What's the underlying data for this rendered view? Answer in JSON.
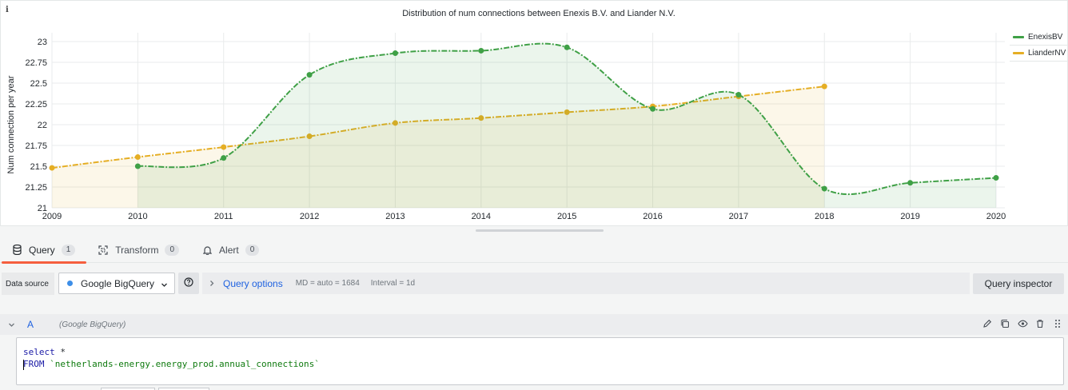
{
  "panel": {
    "info_icon": "i",
    "title": "Distribution of num connections between Enexis B.V. and Liander N.V."
  },
  "chart_data": {
    "type": "line",
    "title": "Distribution of num connections between Enexis B.V. and Liander N.V.",
    "xlabel": "",
    "ylabel": "Num connection per year",
    "xlim": [
      2009,
      2020
    ],
    "ylim": [
      21,
      23
    ],
    "x_ticks": [
      "2009",
      "2010",
      "2011",
      "2012",
      "2013",
      "2014",
      "2015",
      "2016",
      "2017",
      "2018",
      "2019",
      "2020"
    ],
    "y_ticks": [
      "21",
      "21.25",
      "21.5",
      "21.75",
      "22",
      "22.25",
      "22.5",
      "22.75",
      "23"
    ],
    "grid": true,
    "legend": "right",
    "series": [
      {
        "name": "EnexisBV",
        "color": "#3fa046",
        "points": [
          [
            2010,
            21.5
          ],
          [
            2011,
            21.6
          ],
          [
            2012,
            22.6
          ],
          [
            2013,
            22.86
          ],
          [
            2014,
            22.89
          ],
          [
            2015,
            22.93
          ],
          [
            2016,
            22.19
          ],
          [
            2017,
            22.36
          ],
          [
            2018,
            21.23
          ],
          [
            2019,
            21.3
          ],
          [
            2020,
            21.36
          ]
        ]
      },
      {
        "name": "LianderNV",
        "color": "#e5ae24",
        "points": [
          [
            2009,
            21.48
          ],
          [
            2010,
            21.61
          ],
          [
            2011,
            21.73
          ],
          [
            2012,
            21.86
          ],
          [
            2013,
            22.02
          ],
          [
            2014,
            22.08
          ],
          [
            2015,
            22.15
          ],
          [
            2016,
            22.22
          ],
          [
            2017,
            22.34
          ],
          [
            2018,
            22.46
          ]
        ]
      }
    ]
  },
  "tabs": [
    {
      "label": "Query",
      "count": "1"
    },
    {
      "label": "Transform",
      "count": "0"
    },
    {
      "label": "Alert",
      "count": "0"
    }
  ],
  "datasource": {
    "label": "Data source",
    "selected": "Google BigQuery",
    "help_icon": "question-circle-icon"
  },
  "query_options": {
    "label": "Query options",
    "md": "MD = auto = 1684",
    "interval": "Interval = 1d"
  },
  "query_inspector": {
    "label": "Query inspector"
  },
  "query": {
    "ref_id": "A",
    "datasource": "(Google BigQuery)",
    "line1_kw": "select",
    "line1_rest": " *",
    "line2_kw": "FROM",
    "line2_rest": "`netherlands-energy.energy_prod.annual_connections`"
  },
  "colors": {
    "accent_tab": "#f55f3e",
    "link": "#1f62e0"
  }
}
